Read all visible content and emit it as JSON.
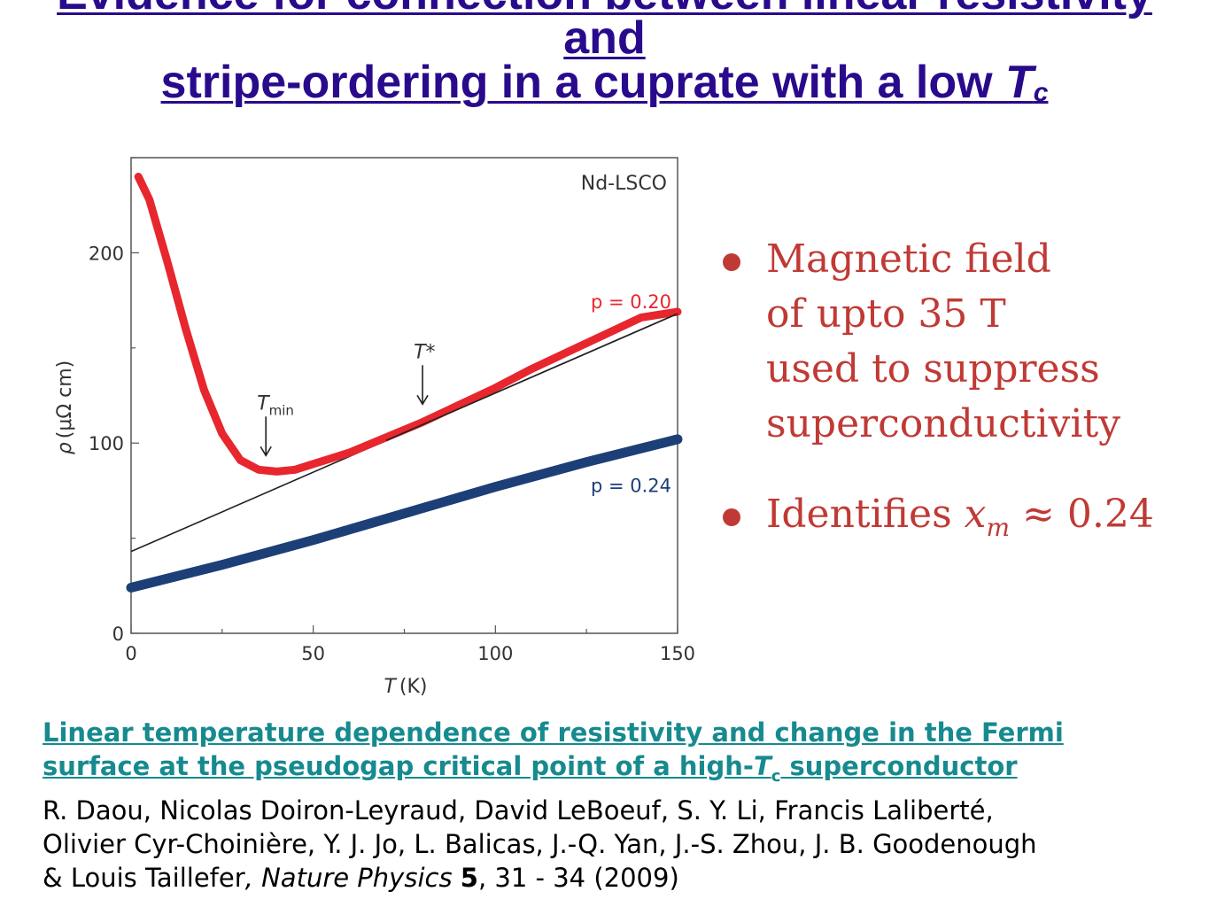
{
  "title": {
    "line1": "Evidence for connection between linear resistivity",
    "line2": "and",
    "line3_prefix": "stripe-ordering in a cuprate with a low ",
    "line3_T": "T",
    "line3_sub": "c"
  },
  "chart_data": {
    "type": "line",
    "panel_label": "Nd-LSCO",
    "xlabel_symbol": "T",
    "xlabel_unit": "(K)",
    "ylabel_symbol": "ρ",
    "ylabel_unit": "(μΩ cm)",
    "xlim": [
      0,
      150
    ],
    "ylim": [
      0,
      250
    ],
    "x_ticks": [
      "0",
      "50",
      "100",
      "150"
    ],
    "x_tick_values": [
      0,
      50,
      100,
      150
    ],
    "y_ticks": [
      "0",
      "100",
      "200"
    ],
    "y_tick_values": [
      0,
      100,
      200
    ],
    "series": [
      {
        "name": "p = 0.20",
        "color": "#e8262e",
        "x": [
          2,
          5,
          10,
          15,
          20,
          25,
          30,
          35,
          40,
          45,
          50,
          55,
          60,
          70,
          80,
          90,
          100,
          110,
          120,
          130,
          140,
          150
        ],
        "y": [
          240,
          228,
          195,
          160,
          128,
          105,
          91,
          86,
          85,
          86,
          89,
          92,
          95,
          103,
          111,
          120,
          129,
          139,
          148,
          157,
          166,
          169
        ]
      },
      {
        "name": "p = 0.24",
        "color": "#1d3f78",
        "x": [
          0,
          25,
          50,
          75,
          100,
          125,
          150
        ],
        "y": [
          24,
          36,
          49,
          63,
          77,
          90,
          102
        ]
      }
    ],
    "fit_line": {
      "color": "#222222",
      "x": [
        0,
        150
      ],
      "y": [
        43,
        168
      ]
    },
    "annotations": [
      {
        "symbol": "T",
        "sub": "min",
        "x": 37,
        "y": 86
      },
      {
        "symbol": "T*",
        "sub": "",
        "x": 80,
        "y": 113
      }
    ]
  },
  "bullets": [
    {
      "lines": [
        "Magnetic field",
        "of upto 35 T",
        "used to suppress",
        "superconductivity"
      ]
    },
    {
      "prefix": "Identifies ",
      "var": "x",
      "var_sub": "m",
      "suffix": " ≈ 0.24"
    }
  ],
  "citation": {
    "link_line1": "Linear temperature dependence of resistivity and change in the Fermi",
    "link_line2_prefix": "surface at the pseudogap critical point of a high-",
    "link_line2_T": "T",
    "link_line2_sub": "c",
    "link_line2_suffix": " superconductor",
    "authors_line1": "R. Daou, Nicolas Doiron-Leyraud, David LeBoeuf, S. Y. Li, Francis Laliberté,",
    "authors_line2": "Olivier Cyr-Choinière, Y. J. Jo, L. Balicas, J.-Q. Yan, J.-S. Zhou, J. B. Goodenough",
    "authors_line3_prefix": "& Louis Taillefer",
    "journal": ", Nature Physics ",
    "volume": "5",
    "pages_year": ", 31 - 34 (2009)"
  }
}
